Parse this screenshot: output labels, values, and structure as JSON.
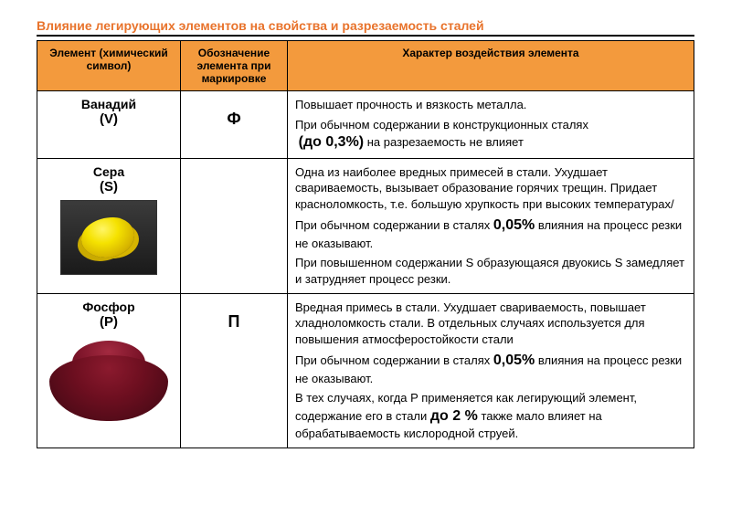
{
  "title": "Влияние легирующих элементов на свойства и разрезаемость сталей",
  "headers": {
    "col1": "Элемент (химический символ)",
    "col2": "Обозначение элемента при маркировке",
    "col3": "Характер воздействия элемента"
  },
  "rows": [
    {
      "element_name": "Ванадий",
      "element_symbol": "(V)",
      "mark": "Ф",
      "desc": {
        "line1": "Повышает прочность и вязкость металла.",
        "line2a": "При обычном содержании в конструкционных сталях",
        "bold1": "(до 0,3%)",
        "line2b": " на разрезаемость не влияет"
      }
    },
    {
      "element_name": "Сера",
      "element_symbol": "(S)",
      "mark": "",
      "desc": {
        "p1": "Одна из наиболее вредных примесей в стали. Ухудшает свариваемость, вызывает образование горячих трещин. Придает красноломкость, т.е. большую хрупкость при высоких температурах/",
        "p2a": "При обычном содержании в сталях ",
        "bold1": "0,05%",
        "p2b": " влияния на процесс резки не оказывают.",
        "p3": "При повышенном содержании S образующаяся двуокись S замедляет и затрудняет процесс резки."
      }
    },
    {
      "element_name": "Фосфор",
      "element_symbol": "(P)",
      "mark": "П",
      "desc": {
        "p1": "Вредная примесь в стали. Ухудшает свариваемость, повышает хладноломкость стали. В отдельных случаях используется для повышения атмосферостойкости стали",
        "p2a": "При обычном содержании в сталях ",
        "bold1": "0,05%",
        "p2b": "  влияния на процесс резки не оказывают.",
        "p3a": "В тех случаях, когда P применяется как легирующий элемент, содержание его в стали ",
        "bold2": "до 2 %",
        "p3b": " также мало влияет на обрабатываемость кислородной струей."
      }
    }
  ]
}
